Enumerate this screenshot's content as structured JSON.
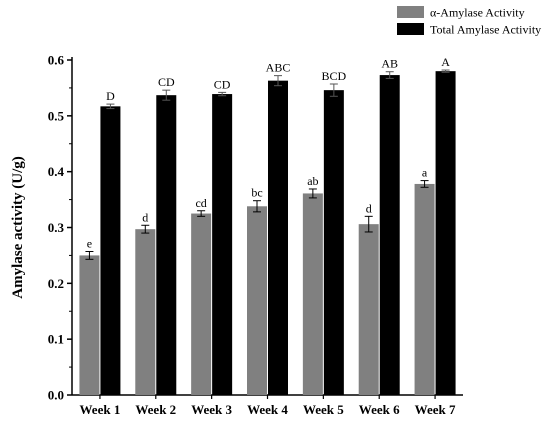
{
  "chart_data": {
    "type": "bar",
    "categories": [
      "Week 1",
      "Week 2",
      "Week 3",
      "Week 4",
      "Week 5",
      "Week 6",
      "Week 7"
    ],
    "series": [
      {
        "name": "α-Amylase Activity",
        "color": "#808080",
        "values": [
          0.25,
          0.297,
          0.325,
          0.338,
          0.361,
          0.306,
          0.378
        ],
        "errors": [
          0.007,
          0.007,
          0.005,
          0.01,
          0.008,
          0.014,
          0.006
        ],
        "labels": [
          "e",
          "d",
          "cd",
          "bc",
          "ab",
          "d",
          "a"
        ]
      },
      {
        "name": "Total Amylase Activity",
        "color": "#000000",
        "values": [
          0.517,
          0.537,
          0.539,
          0.563,
          0.546,
          0.573,
          0.58
        ],
        "errors": [
          0.004,
          0.009,
          0.003,
          0.009,
          0.011,
          0.006,
          0.002
        ],
        "labels": [
          "D",
          "CD",
          "CD",
          "ABC",
          "BCD",
          "AB",
          "A"
        ]
      }
    ],
    "title": "",
    "xlabel": "",
    "ylabel": "Amylase activity (U/g)",
    "ylim": [
      0.0,
      0.6
    ],
    "yticks": [
      "0.0",
      "0.1",
      "0.2",
      "0.3",
      "0.4",
      "0.5",
      "0.6"
    ],
    "grid": false,
    "legend_position": "top-right"
  }
}
